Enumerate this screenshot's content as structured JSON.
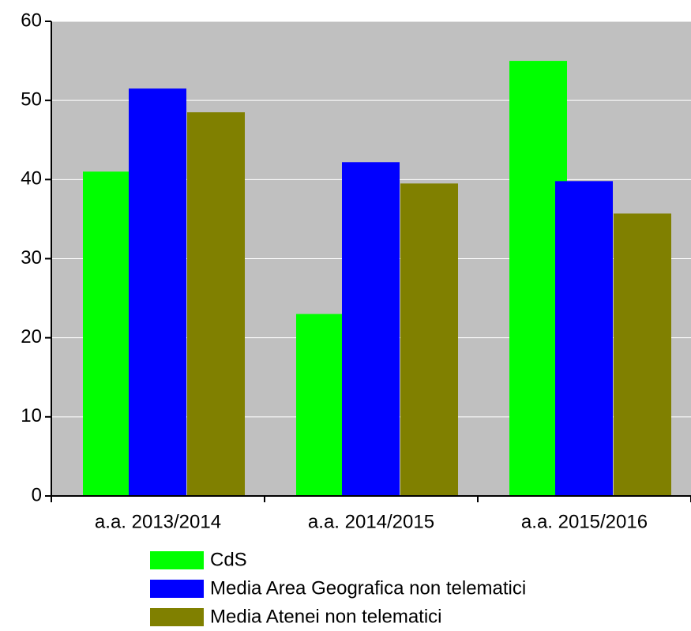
{
  "chart_data": {
    "type": "bar",
    "categories": [
      "a.a. 2013/2014",
      "a.a. 2014/2015",
      "a.a. 2015/2016"
    ],
    "series": [
      {
        "name": "CdS",
        "color": "#00ff00",
        "values": [
          41,
          23,
          55
        ]
      },
      {
        "name": "Media Area Geografica non telematici",
        "color": "#0000ff",
        "values": [
          51.5,
          42.2,
          39.8
        ]
      },
      {
        "name": "Media Atenei non telematici",
        "color": "#808000",
        "values": [
          48.5,
          39.5,
          35.7
        ]
      }
    ],
    "ylim": [
      0,
      60
    ],
    "yticks": [
      0,
      10,
      20,
      30,
      40,
      50,
      60
    ],
    "grid": true,
    "legend": "bottom",
    "plot_background": "#c0c0c0"
  }
}
